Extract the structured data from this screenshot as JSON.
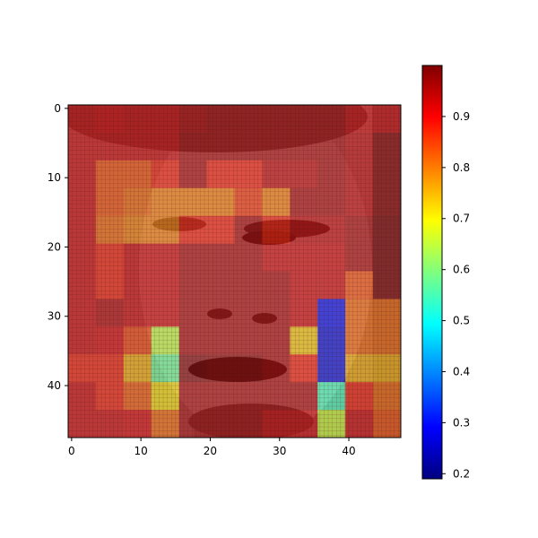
{
  "chart_data": {
    "type": "heatmap",
    "title": "",
    "xlabel": "",
    "ylabel": "",
    "grid_size": 48,
    "cell_block": 4,
    "xlim": [
      0,
      48
    ],
    "ylim": [
      48,
      0
    ],
    "x_ticks": [
      0,
      10,
      20,
      30,
      40
    ],
    "y_ticks": [
      0,
      10,
      20,
      30,
      40
    ],
    "colormap": "jet",
    "colorbar": {
      "range": [
        0.19,
        1.0
      ],
      "ticks": [
        0.2,
        0.3,
        0.4,
        0.5,
        0.6,
        0.7,
        0.8,
        0.9
      ],
      "tick_labels": [
        "0.2",
        "0.3",
        "0.4",
        "0.5",
        "0.6",
        "0.7",
        "0.8",
        "0.9"
      ],
      "placement": "right"
    },
    "overlay_alpha": 0.6,
    "background": "grayscale face photograph",
    "values": [
      [
        0.93,
        0.92,
        0.93,
        0.93,
        0.95,
        0.96,
        0.96,
        0.96,
        0.96,
        0.96,
        0.93,
        0.93
      ],
      [
        0.93,
        0.93,
        0.93,
        0.93,
        0.96,
        0.96,
        0.96,
        0.96,
        0.96,
        0.96,
        0.94,
        0.98
      ],
      [
        0.93,
        0.84,
        0.84,
        0.88,
        0.96,
        0.88,
        0.88,
        0.94,
        0.94,
        0.96,
        0.94,
        0.98
      ],
      [
        0.93,
        0.84,
        0.82,
        0.8,
        0.8,
        0.8,
        0.86,
        0.8,
        0.96,
        0.96,
        0.94,
        0.98
      ],
      [
        0.93,
        0.82,
        0.8,
        0.8,
        0.88,
        0.88,
        0.96,
        0.88,
        0.94,
        0.94,
        0.96,
        0.99
      ],
      [
        0.93,
        0.88,
        0.93,
        0.93,
        0.96,
        0.96,
        0.96,
        0.93,
        0.93,
        0.93,
        0.96,
        0.99
      ],
      [
        0.93,
        0.88,
        0.93,
        0.93,
        0.96,
        0.96,
        0.96,
        0.96,
        0.93,
        0.93,
        0.84,
        0.99
      ],
      [
        0.93,
        0.95,
        0.93,
        0.93,
        0.96,
        0.96,
        0.96,
        0.96,
        0.93,
        0.28,
        0.82,
        0.82
      ],
      [
        0.93,
        0.92,
        0.85,
        0.65,
        0.96,
        0.96,
        0.96,
        0.96,
        0.74,
        0.26,
        0.82,
        0.82
      ],
      [
        0.88,
        0.88,
        0.76,
        0.58,
        0.99,
        0.98,
        0.98,
        0.96,
        0.88,
        0.26,
        0.76,
        0.76
      ],
      [
        0.93,
        0.88,
        0.83,
        0.72,
        0.96,
        0.96,
        0.96,
        0.96,
        0.96,
        0.55,
        0.88,
        0.82
      ],
      [
        0.93,
        0.93,
        0.92,
        0.82,
        0.96,
        0.96,
        0.96,
        0.93,
        0.93,
        0.66,
        0.93,
        0.84
      ]
    ]
  }
}
